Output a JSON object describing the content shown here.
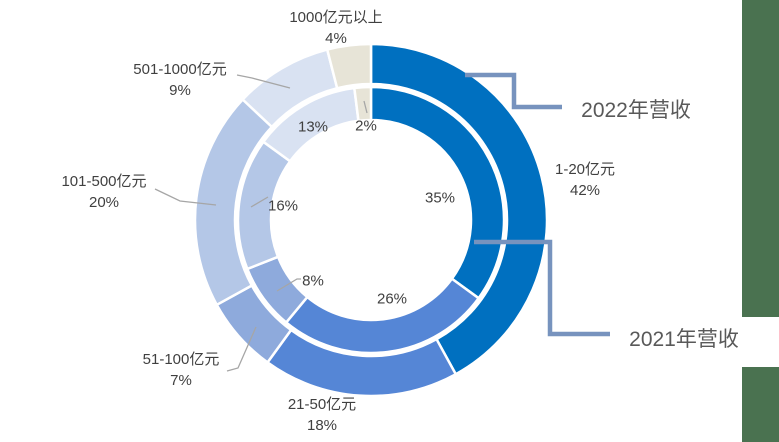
{
  "chart_data": {
    "type": "donut",
    "title": "",
    "categories": [
      "1-20亿元",
      "21-50亿元",
      "51-100亿元",
      "101-500亿元",
      "501-1000亿元",
      "1000亿元以上"
    ],
    "series": [
      {
        "name": "2022年营收",
        "ring": "outer",
        "values": [
          42,
          18,
          7,
          20,
          9,
          4
        ]
      },
      {
        "name": "2021年营收",
        "ring": "inner",
        "values": [
          35,
          26,
          8,
          16,
          13,
          2
        ]
      }
    ],
    "unit": "%",
    "outer_pct_labels": [
      "42%",
      "18%",
      "7%",
      "20%",
      "9%",
      "4%"
    ],
    "inner_pct_labels": [
      "35%",
      "26%",
      "8%",
      "16%",
      "13%",
      "2%"
    ],
    "start_angle_deg": 0,
    "direction": "clockwise",
    "legend_position": "callout-labels-right",
    "colors": [
      "#0070C0",
      "#5586D6",
      "#8EAADC",
      "#B4C7E7",
      "#D9E2F2",
      "#E7E4D7"
    ],
    "segment_border_color": "#FFFFFF",
    "leader_line_color": "#A6A6A6",
    "callout_line_color": "#7793BE",
    "label_color": "#404040",
    "series_label_color": "#595959",
    "background": "#FFFFFF"
  },
  "decorations": {
    "side_bar_color": "#4A7250"
  }
}
